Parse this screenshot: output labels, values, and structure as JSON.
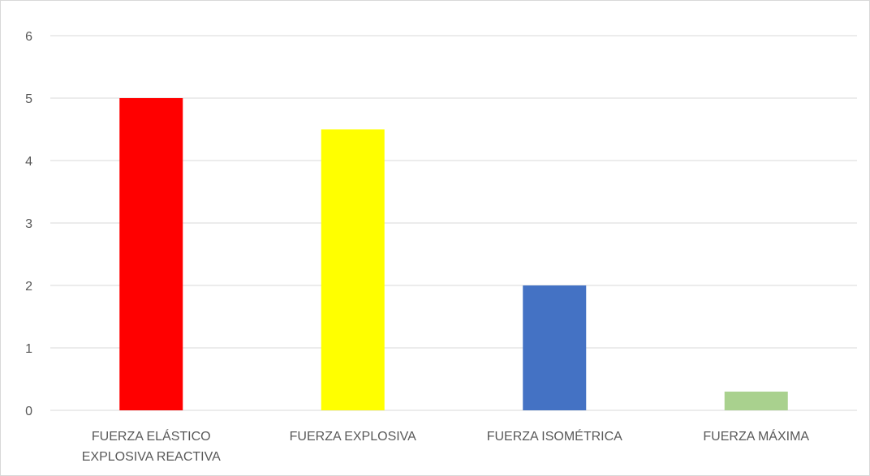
{
  "chart_data": {
    "type": "bar",
    "title": "",
    "xlabel": "",
    "ylabel": "",
    "ylim": [
      0,
      6
    ],
    "y_ticks": [
      "0",
      "1",
      "2",
      "3",
      "4",
      "5",
      "6"
    ],
    "grid": true,
    "legend": "none",
    "categories": [
      [
        "FUERZA ELÁSTICO",
        "EXPLOSIVA REACTIVA"
      ],
      [
        "FUERZA EXPLOSIVA"
      ],
      [
        "FUERZA ISOMÉTRICA"
      ],
      [
        "FUERZA MÁXIMA"
      ]
    ],
    "values": [
      5,
      4.5,
      2,
      0.3
    ],
    "colors": [
      "#FF0000",
      "#FFFF00",
      "#4472C4",
      "#A9D18E"
    ]
  }
}
